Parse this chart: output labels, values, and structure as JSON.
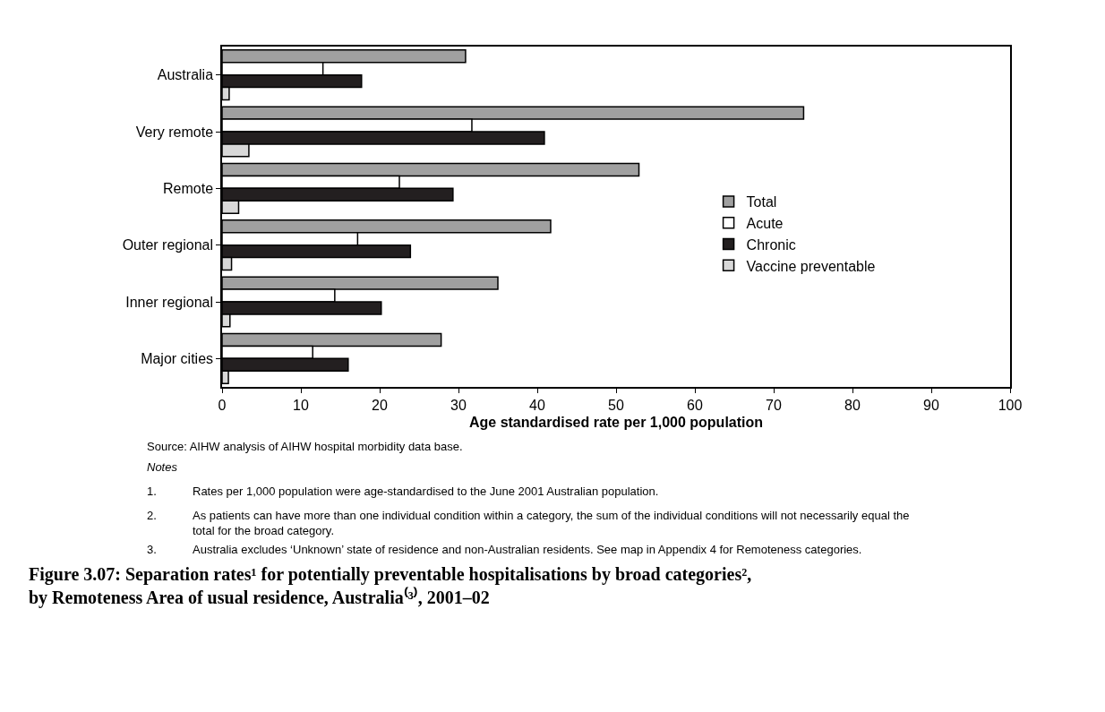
{
  "chart_data": {
    "type": "bar",
    "orientation": "horizontal",
    "title": "Figure 3.07: Separation rates¹ for potentially preventable hospitalisations by broad categories², by Remoteness Area of usual residence, Australia⁽³⁾, 2001–02",
    "xlabel": "Age standardised rate per 1,000 population",
    "categories": [
      "Australia",
      "Very remote",
      "Remote",
      "Outer regional",
      "Inner regional",
      "Major cities"
    ],
    "series": [
      {
        "name": "Total",
        "color": "#a0a0a0",
        "values": [
          30.9,
          73.8,
          52.9,
          41.7,
          35.0,
          27.8
        ]
      },
      {
        "name": "Acute",
        "color": "#ffffff",
        "values": [
          12.8,
          31.7,
          22.5,
          17.2,
          14.3,
          11.5
        ]
      },
      {
        "name": "Chronic",
        "color": "#231f20",
        "values": [
          17.7,
          40.9,
          29.3,
          23.9,
          20.2,
          16.0
        ]
      },
      {
        "name": "Vaccine preventable",
        "color": "#d8d8d8",
        "values": [
          0.9,
          3.4,
          2.1,
          1.2,
          1.0,
          0.8
        ]
      }
    ],
    "xlim": [
      0,
      100
    ],
    "xticks": [
      0,
      10,
      20,
      30,
      40,
      50,
      60,
      70,
      80,
      90,
      100
    ],
    "grid": false,
    "legend": "right",
    "annotations": [
      "Source: AIHW analysis of AIHW hospital morbidity data base.",
      "Notes",
      "1.",
      "Rates per 1,000 population were age-standardised to the June 2001 Australian population.",
      "2.",
      "As patients can have more than one individual condition within a category, the sum of the individual conditions will not necessarily equal the total for the broad category.",
      "3.",
      "Australia excludes ‘Unknown’ state of residence and non-Australian residents. See map in Appendix 4 for Remoteness categories."
    ]
  }
}
